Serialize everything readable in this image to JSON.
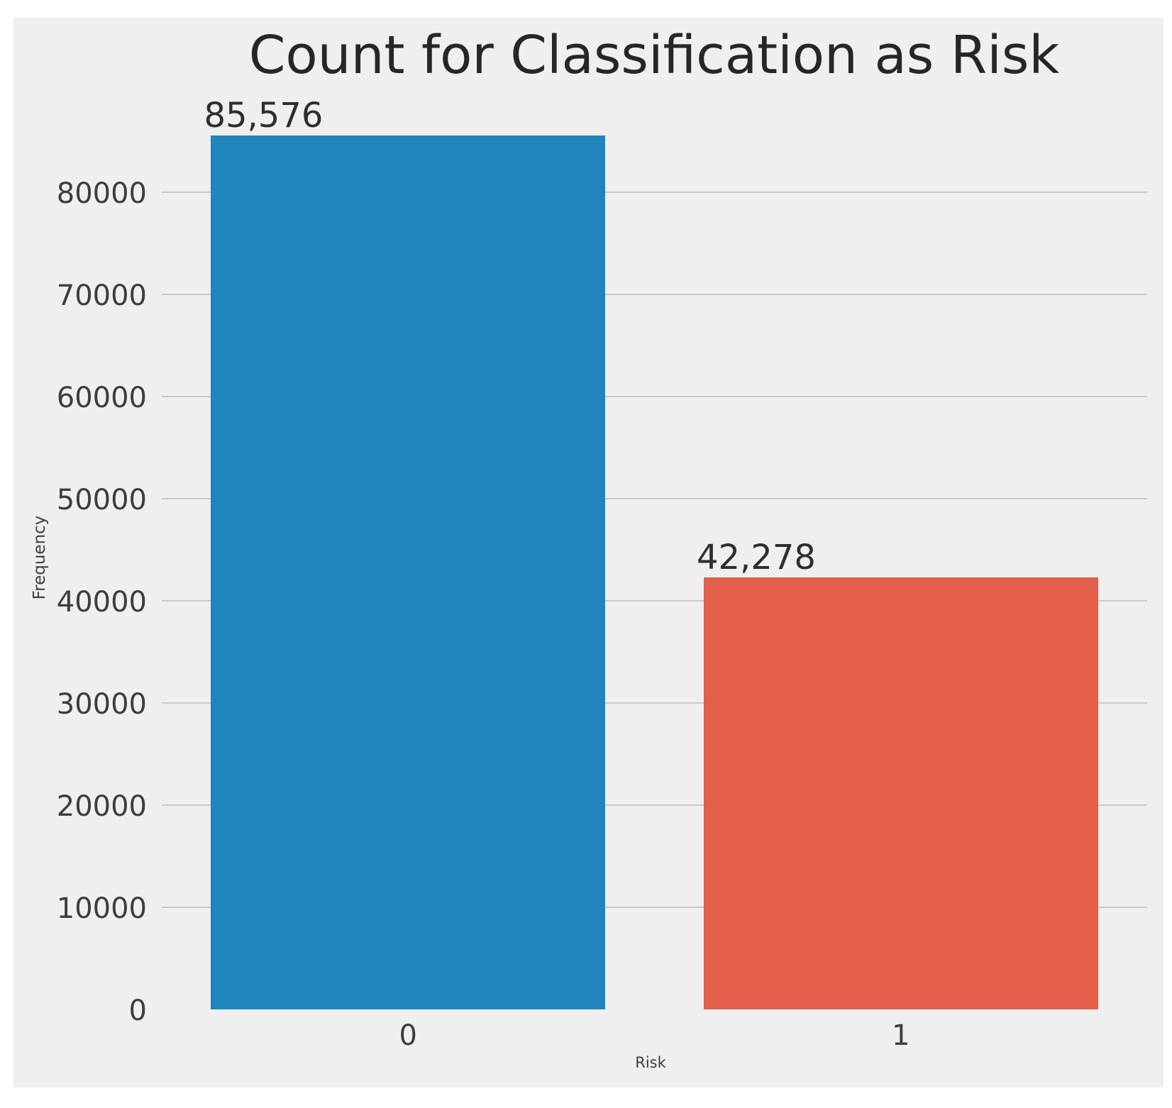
{
  "page": {
    "background_color": "#ffffff",
    "figure_background_color": "#efefef",
    "grid_color": "#c9c9c9",
    "tick_text_color": "#3d3d3d",
    "title_text_color": "#262626"
  },
  "chart_data": {
    "type": "bar",
    "title": "Count for Classification as Risk",
    "xlabel": "Risk",
    "ylabel": "Frequency",
    "categories": [
      "0",
      "1"
    ],
    "values": [
      85576,
      42278
    ],
    "value_labels": [
      "85,576",
      "42,278"
    ],
    "bar_colors": [
      "#2084bd",
      "#e25f49"
    ],
    "yticks": [
      0,
      10000,
      20000,
      30000,
      40000,
      50000,
      60000,
      70000,
      80000
    ],
    "ytick_labels": [
      "0",
      "10000",
      "20000",
      "30000",
      "40000",
      "50000",
      "60000",
      "70000",
      "80000"
    ],
    "ylim": [
      0,
      90000
    ],
    "grid": "horizontal",
    "legend": "none",
    "bar_width_fraction": 0.8
  }
}
